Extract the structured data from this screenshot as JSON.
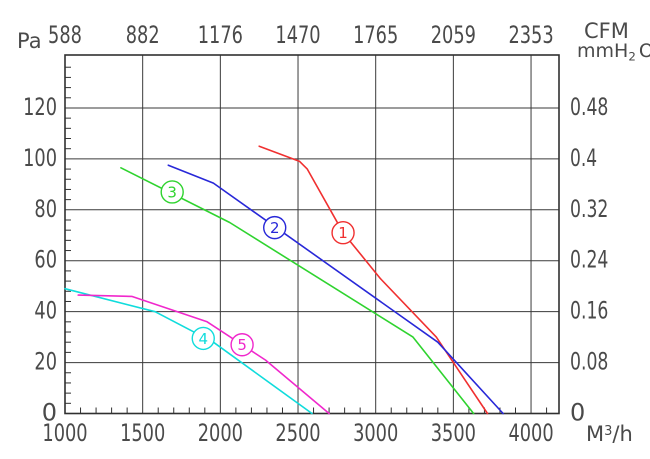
{
  "labels": {
    "left_unit": "Pa",
    "top_unit": "CFM",
    "right_unit": {
      "main": "mmH",
      "sub": "2",
      "tail": "O"
    },
    "bottom_unit": {
      "main": "M",
      "sup": "3",
      "tail": "/h"
    }
  },
  "style": {
    "grid_color": "#3a3a3a",
    "frame_color": "#303030",
    "text_color": "#4a4a4a",
    "marker_fill": "#ffffff"
  },
  "chart_data": {
    "type": "line",
    "title": "",
    "grid": true,
    "legend": "none",
    "axes": {
      "bottom": {
        "unit": "M³/h",
        "range": [
          1000,
          4180
        ],
        "major_ticks": [
          1000,
          1500,
          2000,
          2500,
          3000,
          3500,
          4000
        ],
        "minor_step": 100
      },
      "top": {
        "unit": "CFM",
        "tick_labels": [
          "588",
          "882",
          "1176",
          "1470",
          "1765",
          "2059",
          "2353"
        ]
      },
      "left": {
        "unit": "Pa",
        "range": [
          0,
          140.8
        ],
        "major_ticks": [
          0,
          20,
          40,
          60,
          80,
          100,
          120
        ],
        "minor_step": 4
      },
      "right": {
        "unit": "mmH2O",
        "tick_labels": [
          "0",
          "0.08",
          "0.16",
          "0.24",
          "0.32",
          "0.4",
          "0.48"
        ]
      }
    },
    "series": [
      {
        "label": "1",
        "color": "#f03030",
        "points": [
          [
            2250,
            105
          ],
          [
            2510,
            99
          ],
          [
            2560,
            96
          ],
          [
            2790,
            71
          ],
          [
            3030,
            53
          ],
          [
            3390,
            30
          ],
          [
            3720,
            0
          ]
        ],
        "marker_at": [
          2790,
          71
        ]
      },
      {
        "label": "2",
        "color": "#2828d8",
        "points": [
          [
            1665,
            97.5
          ],
          [
            1955,
            90.5
          ],
          [
            3400,
            28
          ],
          [
            3820,
            0
          ]
        ],
        "marker_at": [
          2350,
          73
        ]
      },
      {
        "label": "3",
        "color": "#2fd32f",
        "points": [
          [
            1360,
            96.5
          ],
          [
            2060,
            75
          ],
          [
            3240,
            30
          ],
          [
            3630,
            0
          ]
        ],
        "marker_at": [
          1690,
          87
        ]
      },
      {
        "label": "4",
        "color": "#10dcdc",
        "points": [
          [
            1000,
            49
          ],
          [
            1580,
            40
          ],
          [
            1955,
            28
          ],
          [
            2590,
            0
          ]
        ],
        "marker_at": [
          1890,
          29.5
        ]
      },
      {
        "label": "5",
        "color": "#f028cc",
        "points": [
          [
            1085,
            46.5
          ],
          [
            1430,
            46
          ],
          [
            1915,
            36
          ],
          [
            2290,
            21
          ],
          [
            2700,
            0
          ]
        ],
        "marker_at": [
          2140,
          27
        ]
      }
    ]
  }
}
